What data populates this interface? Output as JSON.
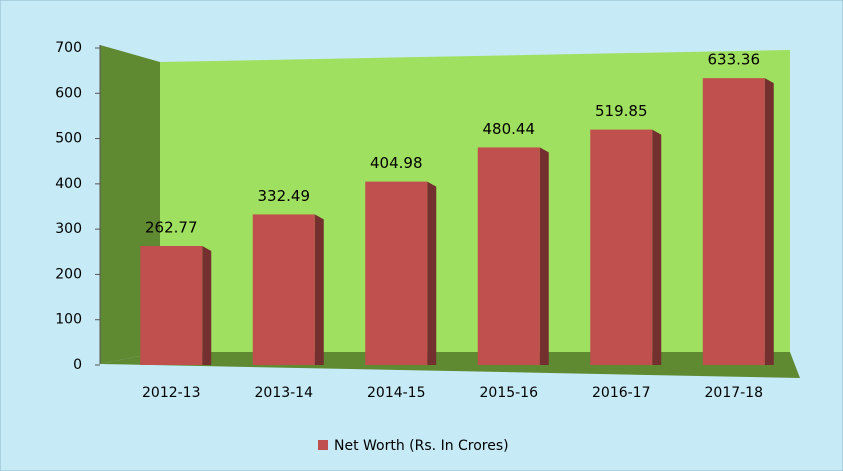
{
  "chart_data": {
    "type": "bar",
    "categories": [
      "2012-13",
      "2013-14",
      "2014-15",
      "2015-16",
      "2016-17",
      "2017-18"
    ],
    "series": [
      {
        "name": "Net Worth (Rs. In Crores)",
        "color": "#c0504d",
        "values": [
          262.77,
          332.49,
          404.98,
          480.44,
          519.85,
          633.36
        ]
      }
    ],
    "ylim": [
      0,
      700
    ],
    "yticks": [
      0,
      100,
      200,
      300,
      400,
      500,
      600,
      700
    ],
    "grid": false,
    "legend": "bottom"
  }
}
